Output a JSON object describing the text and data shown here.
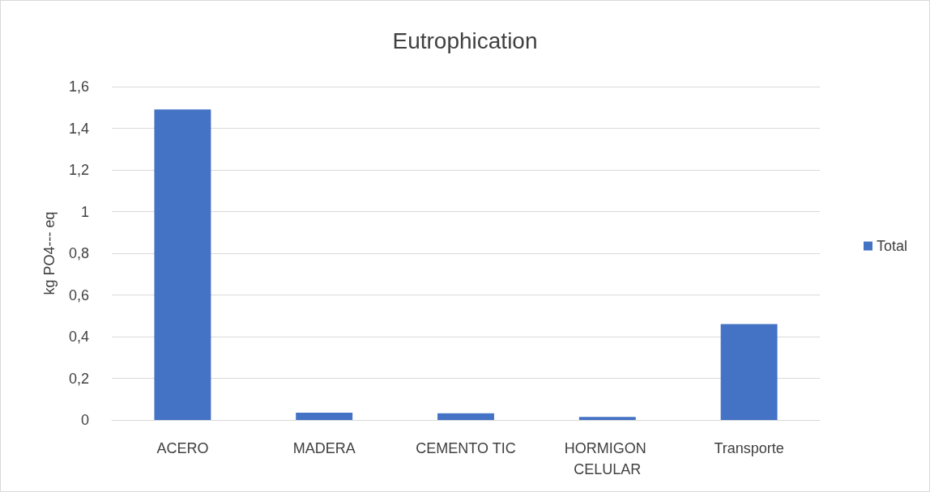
{
  "chart_data": {
    "type": "bar",
    "title": "Eutrophication",
    "ylabel": "kg PO4--- eq",
    "categories": [
      "ACERO",
      "MADERA",
      "CEMENTO TIC",
      "HORMIGON CELULAR",
      "Transporte"
    ],
    "series": [
      {
        "name": "Total",
        "color": "#4472c4",
        "values": [
          1.49,
          0.035,
          0.032,
          0.015,
          0.46
        ]
      }
    ],
    "ylim": [
      0,
      1.6
    ],
    "yticks": [
      0,
      {
        "value": 0.2,
        "label": "0,2"
      },
      {
        "value": 0.4,
        "label": "0,4"
      },
      {
        "value": 0.6,
        "label": "0,6"
      },
      {
        "value": 0.8,
        "label": "0,8"
      },
      1,
      {
        "value": 1.2,
        "label": "1,2"
      },
      {
        "value": 1.4,
        "label": "1,4"
      },
      {
        "value": 1.6,
        "label": "1,6"
      }
    ],
    "grid": "y",
    "legend": "right"
  }
}
